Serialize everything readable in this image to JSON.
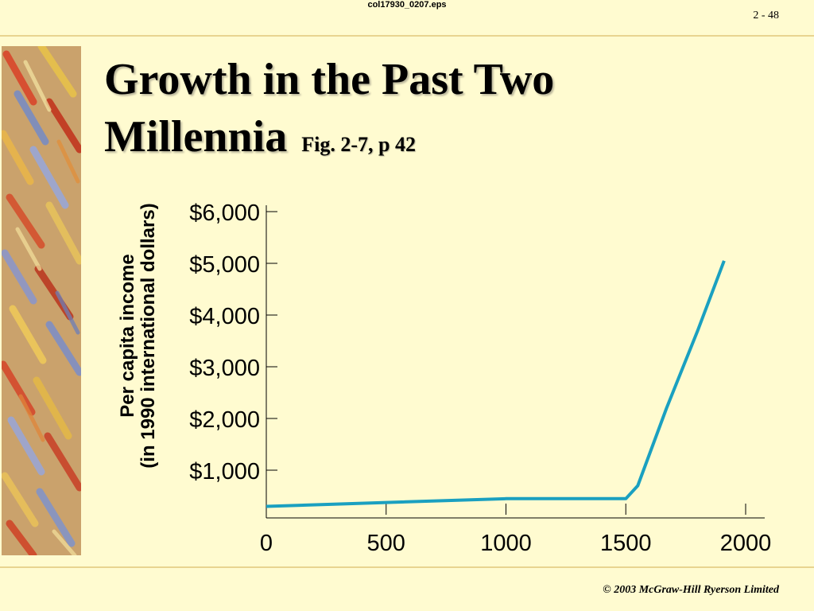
{
  "header": {
    "file_label": "col17930_0207.eps",
    "slide_number": "2 - 48"
  },
  "title": {
    "line1": "Growth in the Past Two",
    "line2": "Millennia",
    "figure_ref": "Fig. 2-7, p 42"
  },
  "footer": {
    "copyright": "© 2003 McGraw-Hill Ryerson Limited"
  },
  "colors": {
    "background": "#fffbd0",
    "line": "#1aa0c0",
    "rule": "#e8d490"
  },
  "chart_data": {
    "type": "line",
    "title": "",
    "xlabel": "",
    "ylabel_line1": "Per capita income",
    "ylabel_line2": "(in 1990 international dollars)",
    "xlim": [
      0,
      2000
    ],
    "ylim": [
      0,
      6000
    ],
    "x_ticks": [
      {
        "value": 0,
        "label": "0"
      },
      {
        "value": 500,
        "label": "500"
      },
      {
        "value": 1000,
        "label": "1000"
      },
      {
        "value": 1500,
        "label": "1500"
      },
      {
        "value": 2000,
        "label": "2000"
      }
    ],
    "y_ticks": [
      {
        "value": 1000,
        "label": "$1,000"
      },
      {
        "value": 2000,
        "label": "$2,000"
      },
      {
        "value": 3000,
        "label": "$3,000"
      },
      {
        "value": 4000,
        "label": "$4,000"
      },
      {
        "value": 5000,
        "label": "$5,000"
      },
      {
        "value": 6000,
        "label": "$6,000"
      }
    ],
    "grid": false,
    "series": [
      {
        "x": [
          0,
          1000,
          1500,
          1550,
          1670,
          1800,
          1910
        ],
        "y": [
          300,
          450,
          450,
          700,
          2200,
          3700,
          5050
        ]
      }
    ]
  }
}
